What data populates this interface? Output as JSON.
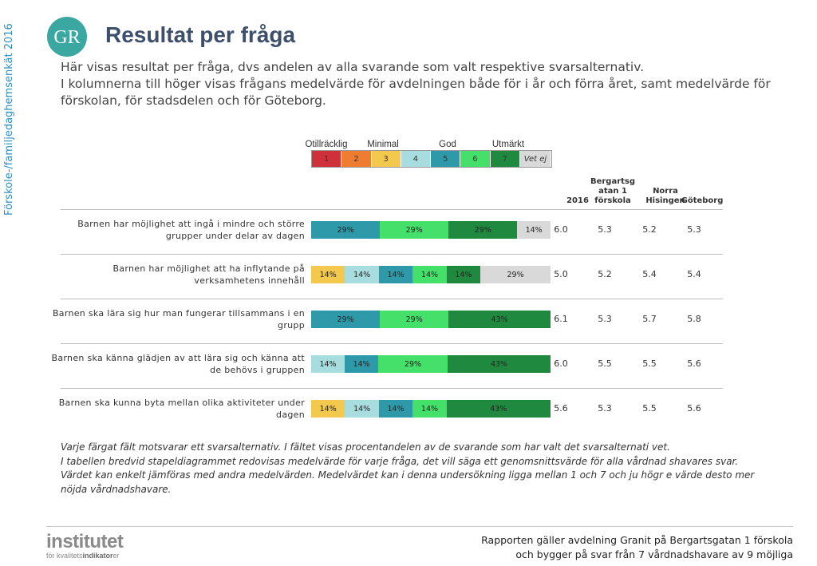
{
  "sidebar": {
    "text": "Förskole-/familjedaghemsenkät 2016"
  },
  "logo": {
    "text": "GR"
  },
  "header": {
    "title": "Resultat per fråga",
    "intro": [
      "Här visas resultat per fråga, dvs andelen av alla svarande som valt respektive svarsalternativ.",
      "I kolumnerna till höger visas frågans medelvärde för avdelningen både för i år och förra året, samt medelvärde för förskolan, för stadsdelen och för Göteborg."
    ]
  },
  "legend": {
    "groups": [
      "Otillräcklig",
      "Minimal",
      "God",
      "Utmärkt"
    ],
    "boxes": [
      "1",
      "2",
      "3",
      "4",
      "5",
      "6",
      "7",
      "Vet ej"
    ]
  },
  "colors": {
    "1": "#d0303a",
    "2": "#ee7d31",
    "3": "#f2c94c",
    "4": "#a8dde0",
    "5": "#2e99a8",
    "6": "#44e06a",
    "7": "#1f8a3f",
    "vetej": "#d9d9d9"
  },
  "table": {
    "headers": [
      "2016",
      "Bergartsg atan 1 förskola",
      "Norra Hisingen",
      "Göteborg"
    ]
  },
  "chart_data": {
    "type": "bar",
    "stacked": true,
    "orientation": "horizontal",
    "categories": [
      "Barnen har möjlighet att ingå i mindre och större grupper under delar av dagen",
      "Barnen har möjlighet att ha inflytande på verksamhetens innehåll",
      "Barnen ska lära sig hur man fungerar tillsammans i en grupp",
      "Barnen ska känna glädjen av att lära sig och känna att de behövs i gruppen",
      "Barnen ska kunna byta mellan olika aktiviteter under dagen"
    ],
    "series": [
      {
        "name": "1",
        "values": [
          0,
          0,
          0,
          0,
          0
        ]
      },
      {
        "name": "2",
        "values": [
          0,
          0,
          0,
          0,
          0
        ]
      },
      {
        "name": "3",
        "values": [
          0,
          14,
          0,
          0,
          14
        ]
      },
      {
        "name": "4",
        "values": [
          0,
          14,
          0,
          14,
          14
        ]
      },
      {
        "name": "5",
        "values": [
          29,
          14,
          29,
          14,
          14
        ]
      },
      {
        "name": "6",
        "values": [
          29,
          14,
          29,
          29,
          14
        ]
      },
      {
        "name": "7",
        "values": [
          29,
          14,
          43,
          43,
          43
        ]
      },
      {
        "name": "Vet ej",
        "values": [
          14,
          29,
          0,
          0,
          0
        ]
      }
    ],
    "data_labels": [
      [
        "29%",
        "29%",
        "29%",
        "14%"
      ],
      [
        "14%",
        "14%",
        "14%",
        "14%",
        "14%",
        "29%"
      ],
      [
        "29%",
        "29%",
        "43%"
      ],
      [
        "14%",
        "14%",
        "29%",
        "43%"
      ],
      [
        "14%",
        "14%",
        "14%",
        "14%",
        "43%"
      ]
    ],
    "table_values": [
      [
        "6.0",
        "5.3",
        "5.2",
        "5.3"
      ],
      [
        "5.0",
        "5.2",
        "5.4",
        "5.4"
      ],
      [
        "6.1",
        "5.3",
        "5.7",
        "5.8"
      ],
      [
        "6.0",
        "5.5",
        "5.5",
        "5.6"
      ],
      [
        "5.6",
        "5.3",
        "5.5",
        "5.6"
      ]
    ]
  },
  "footnote": [
    "Varje färgat fält motsvarar ett svarsalternativ. I fältet visas procentandelen av de svarande som har valt det svarsalternati vet.",
    "I tabellen bredvid stapeldiagrammet redovisas medelvärde för varje fråga, det vill säga ett genomsnittsvärde för alla vårdnad shavares svar. Värdet kan enkelt jämföras med andra medelvärden. Medelvärdet kan i denna undersökning ligga mellan 1 och 7 och ju högr e värde desto mer nöjda vårdnadshavare."
  ],
  "footer": {
    "logo_name": "institutet",
    "logo_sub_prefix": "för kvalitets",
    "logo_sub_bold": "indikator",
    "logo_sub_suffix": "er",
    "report_line1": "Rapporten gäller avdelning Granit  på Bergartsgatan 1 förskola",
    "report_line2": "och bygger på svar från 7 vårdnadshavare av 9 möjliga"
  }
}
